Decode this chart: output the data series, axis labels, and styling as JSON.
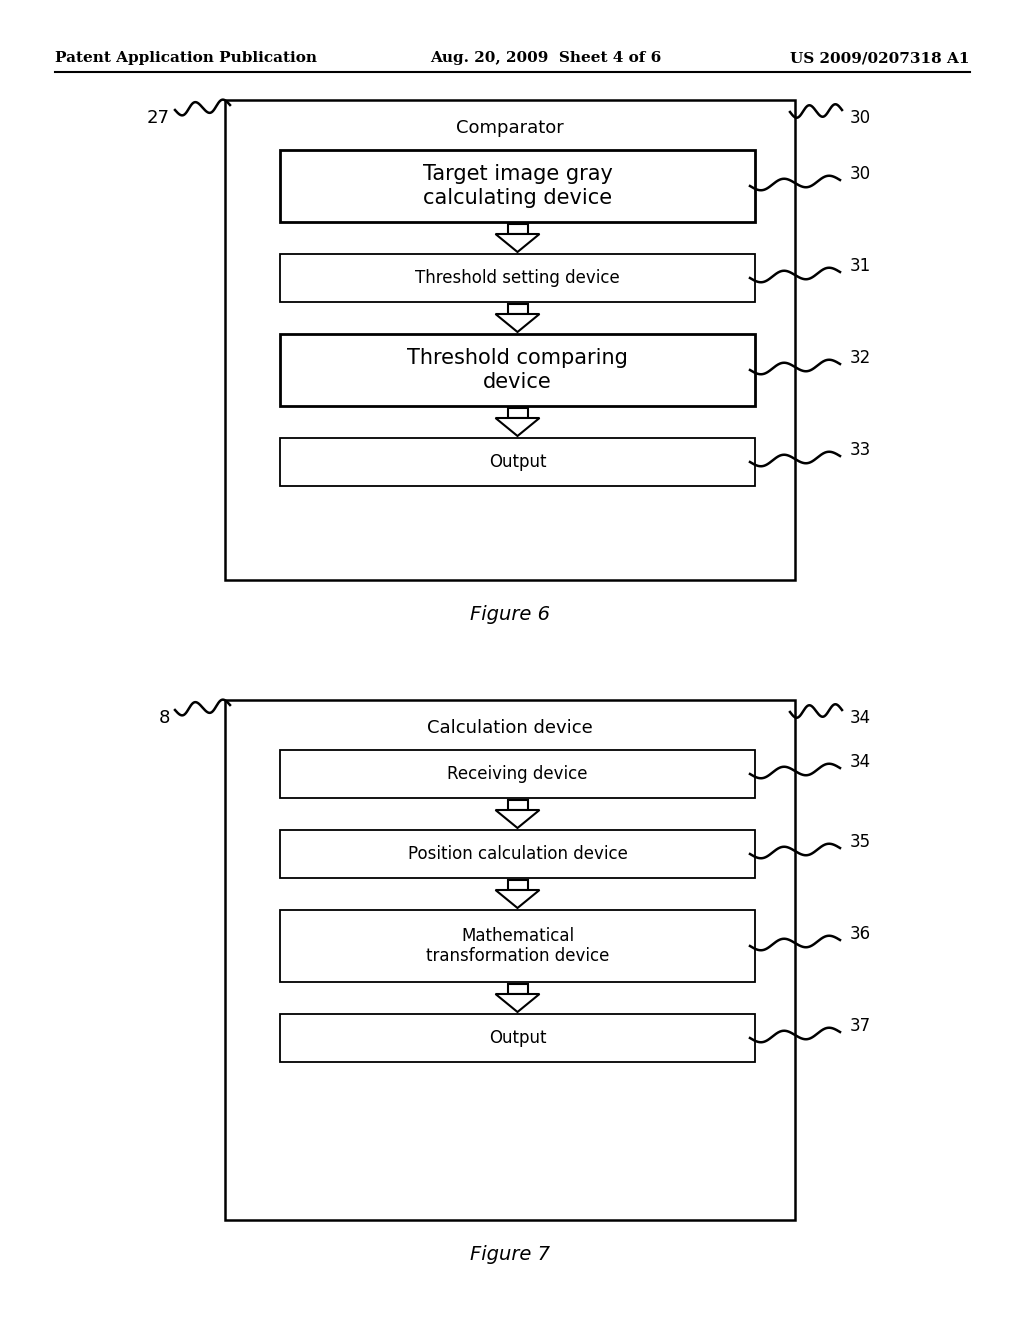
{
  "bg_color": "#ffffff",
  "header_left": "Patent Application Publication",
  "header_center": "Aug. 20, 2009  Sheet 4 of 6",
  "header_right": "US 2009/0207318 A1",
  "fig6": {
    "outer_label": "27",
    "outer_title": "Comparator",
    "outer_num": "30",
    "caption": "Figure 6",
    "boxes": [
      {
        "label": "Target image gray\ncalculating device",
        "num": "30",
        "large": true
      },
      {
        "label": "Threshold setting device",
        "num": "31",
        "large": false
      },
      {
        "label": "Threshold comparing\ndevice",
        "num": "32",
        "large": true
      },
      {
        "label": "Output",
        "num": "33",
        "large": false
      }
    ]
  },
  "fig7": {
    "outer_label": "8",
    "outer_title": "Calculation device",
    "outer_num": "34",
    "caption": "Figure 7",
    "boxes": [
      {
        "label": "Receiving device",
        "num": "34",
        "large": false
      },
      {
        "label": "Position calculation device",
        "num": "35",
        "large": false
      },
      {
        "label": "Mathematical\ntransformation device",
        "num": "36",
        "large": false
      },
      {
        "label": "Output",
        "num": "37",
        "large": false
      }
    ]
  }
}
